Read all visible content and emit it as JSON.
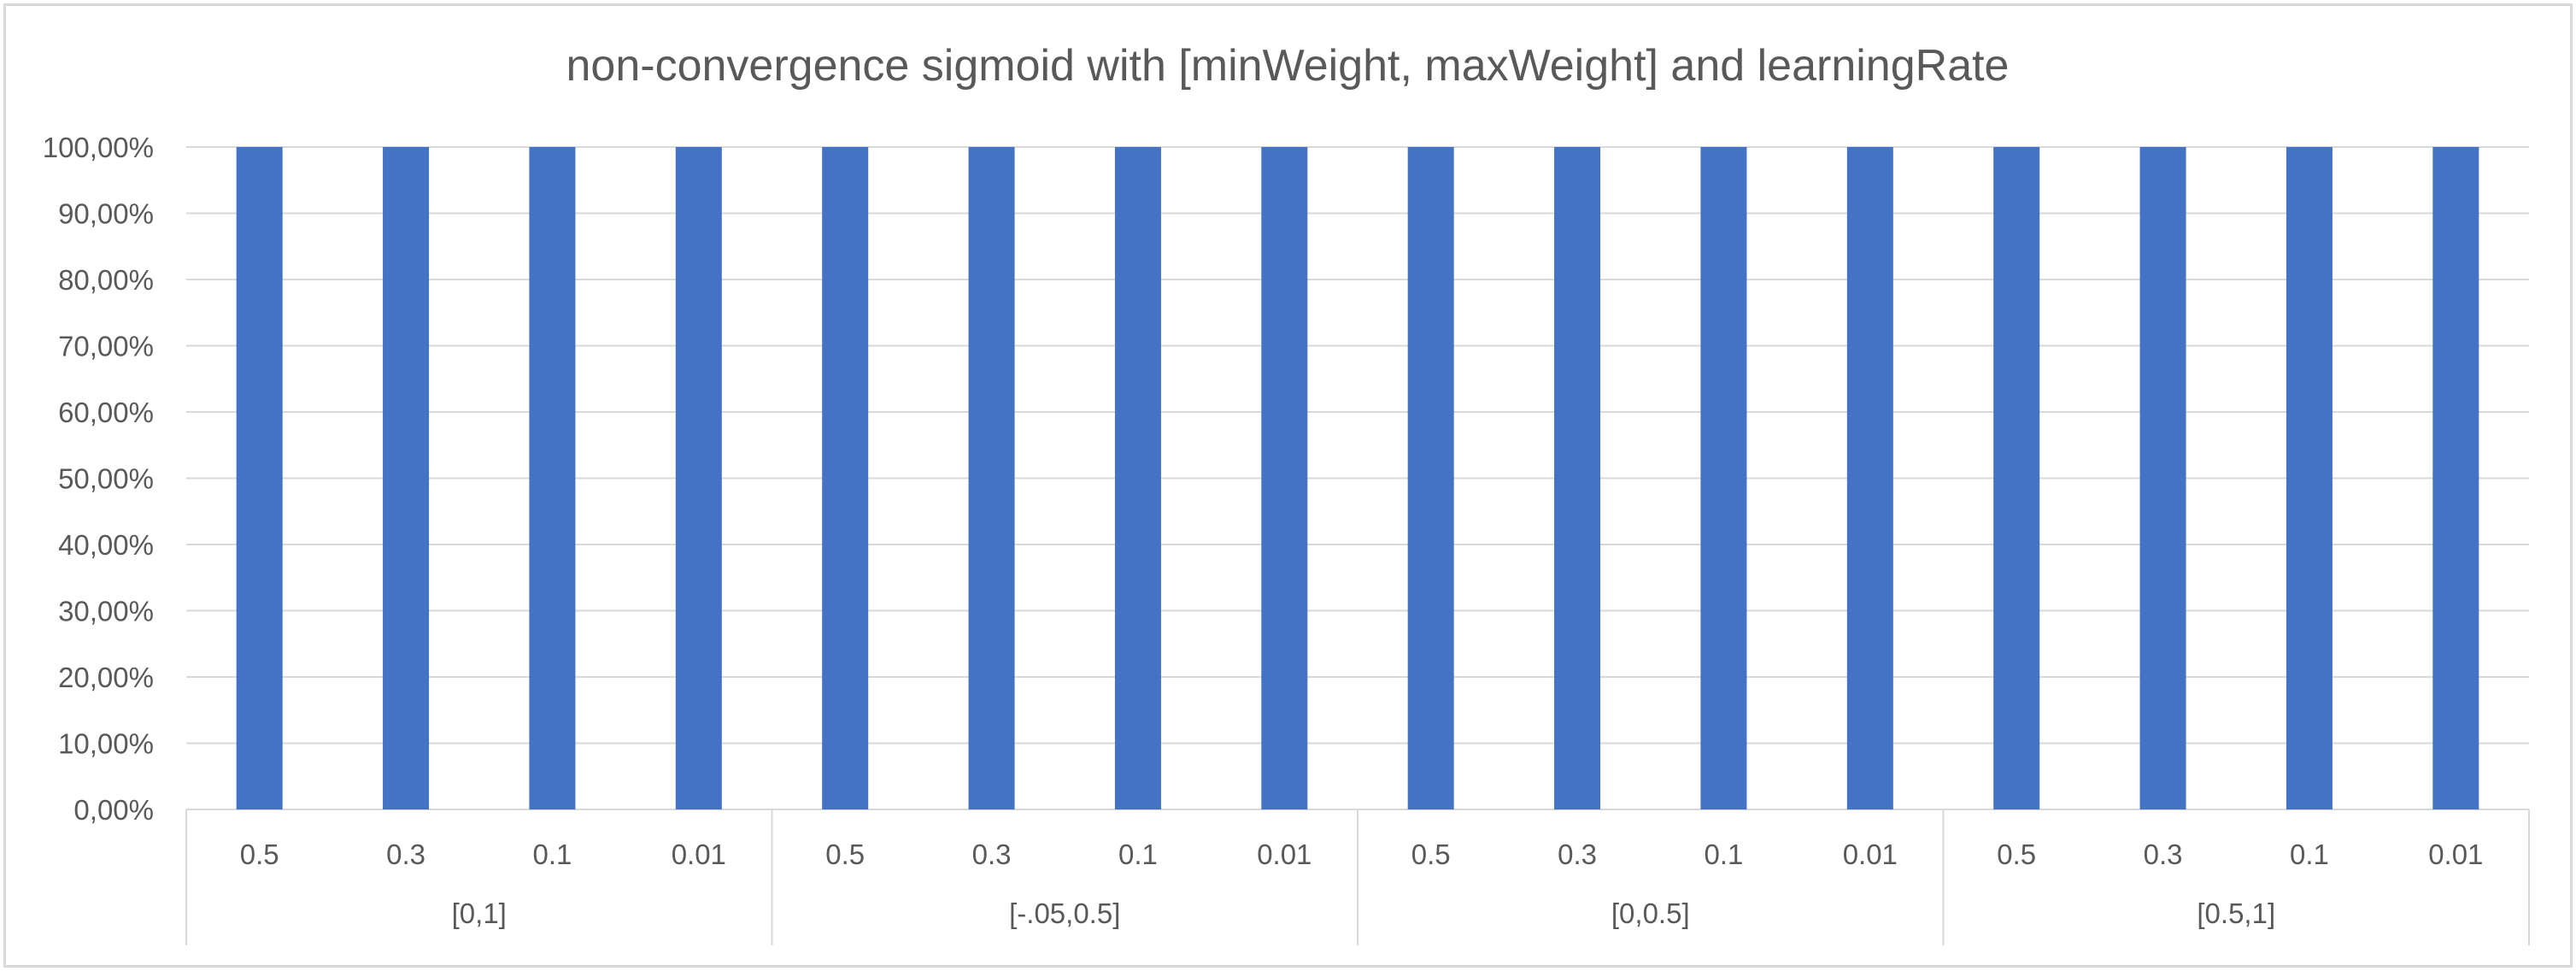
{
  "chart_data": {
    "type": "bar",
    "title": "non-convergence sigmoid with [minWeight, maxWeight] and learningRate",
    "xlabel": "",
    "ylabel": "",
    "ylim": [
      0,
      1
    ],
    "y_ticks": [
      "0,00%",
      "10,00%",
      "20,00%",
      "30,00%",
      "40,00%",
      "50,00%",
      "60,00%",
      "70,00%",
      "80,00%",
      "90,00%",
      "100,00%"
    ],
    "groups": [
      {
        "label": "[0,1]",
        "categories": [
          "0.5",
          "0.3",
          "0.1",
          "0.01"
        ],
        "values": [
          1,
          1,
          1,
          1
        ]
      },
      {
        "label": "[-.05,0.5]",
        "categories": [
          "0.5",
          "0.3",
          "0.1",
          "0.01"
        ],
        "values": [
          1,
          1,
          1,
          1
        ]
      },
      {
        "label": "[0,0.5]",
        "categories": [
          "0.5",
          "0.3",
          "0.1",
          "0.01"
        ],
        "values": [
          1,
          1,
          1,
          1
        ]
      },
      {
        "label": "[0.5,1]",
        "categories": [
          "0.5",
          "0.3",
          "0.1",
          "0.01"
        ],
        "values": [
          1,
          1,
          1,
          1
        ]
      }
    ],
    "grid": true,
    "legend": "none",
    "colors": {
      "bar": "#4472c4",
      "grid": "#d9d9d9",
      "text": "#595959"
    }
  }
}
